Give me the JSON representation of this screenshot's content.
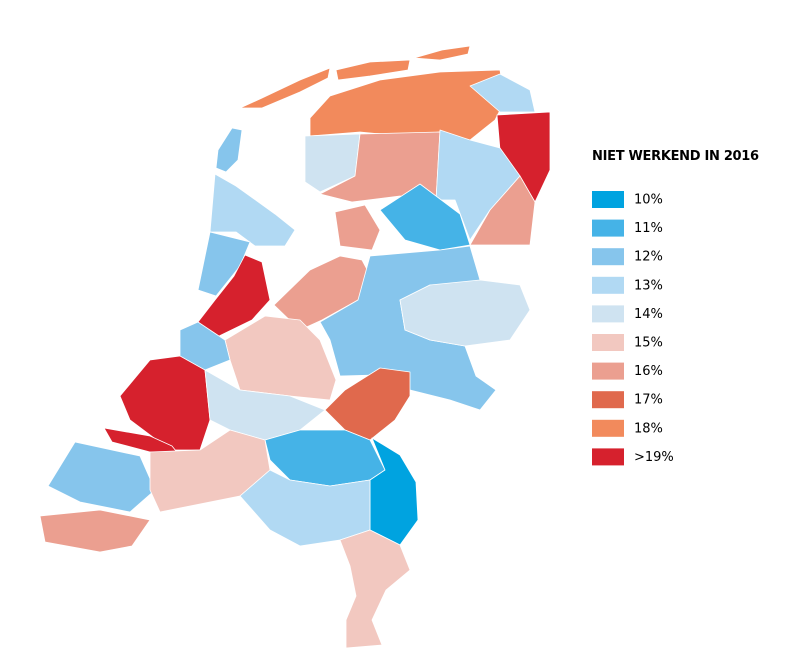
{
  "legend": {
    "title": "NIET WERKEND IN 2016",
    "items": [
      {
        "label": "10%",
        "color": "#00a3e0"
      },
      {
        "label": "11%",
        "color": "#45b3e7"
      },
      {
        "label": "12%",
        "color": "#86c5ec"
      },
      {
        "label": "13%",
        "color": "#b1d9f3"
      },
      {
        "label": "14%",
        "color": "#cfe3f1"
      },
      {
        "label": "15%",
        "color": "#f2c8c0"
      },
      {
        "label": "16%",
        "color": "#eb9f90"
      },
      {
        "label": "17%",
        "color": "#e0694d"
      },
      {
        "label": "18%",
        "color": "#f28a5c"
      },
      {
        "label": ">19%",
        "color": "#d6212d"
      }
    ]
  }
}
